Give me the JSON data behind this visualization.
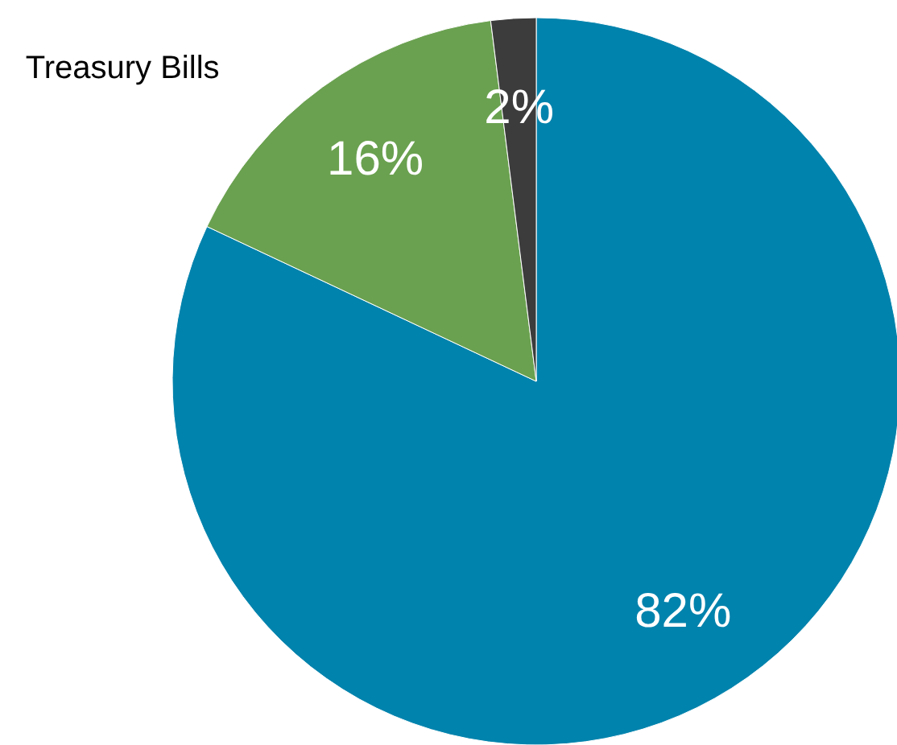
{
  "chart_data": {
    "type": "pie",
    "categories": [
      null,
      "Treasury Bills",
      null
    ],
    "values": [
      82,
      16,
      2
    ],
    "colors": [
      "#0083ad",
      "#6aa150",
      "#3c3c3c"
    ],
    "value_labels": [
      "82%",
      "16%",
      "2%"
    ]
  }
}
